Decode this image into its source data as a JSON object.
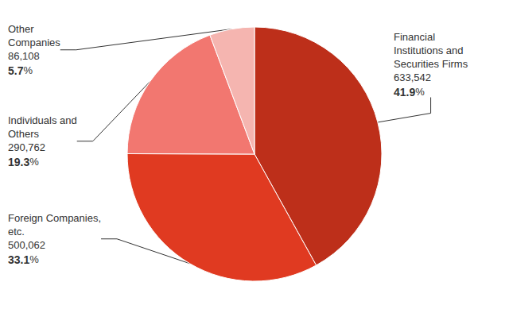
{
  "chart_data": {
    "type": "pie",
    "categories": [
      "Financial Institutions and Securities Firms",
      "Foreign Companies, etc.",
      "Individuals and Others",
      "Other Companies"
    ],
    "values": [
      633542,
      500062,
      290762,
      86108
    ],
    "value_labels": [
      "633,542",
      "500,062",
      "290,762",
      "86,108"
    ],
    "percent_labels": [
      "41.9%",
      "33.1%",
      "19.3%",
      "5.7%"
    ],
    "colors": [
      "#bd2f1a",
      "#e03a21",
      "#f27770",
      "#f5b5b0"
    ],
    "data_labels": true
  }
}
